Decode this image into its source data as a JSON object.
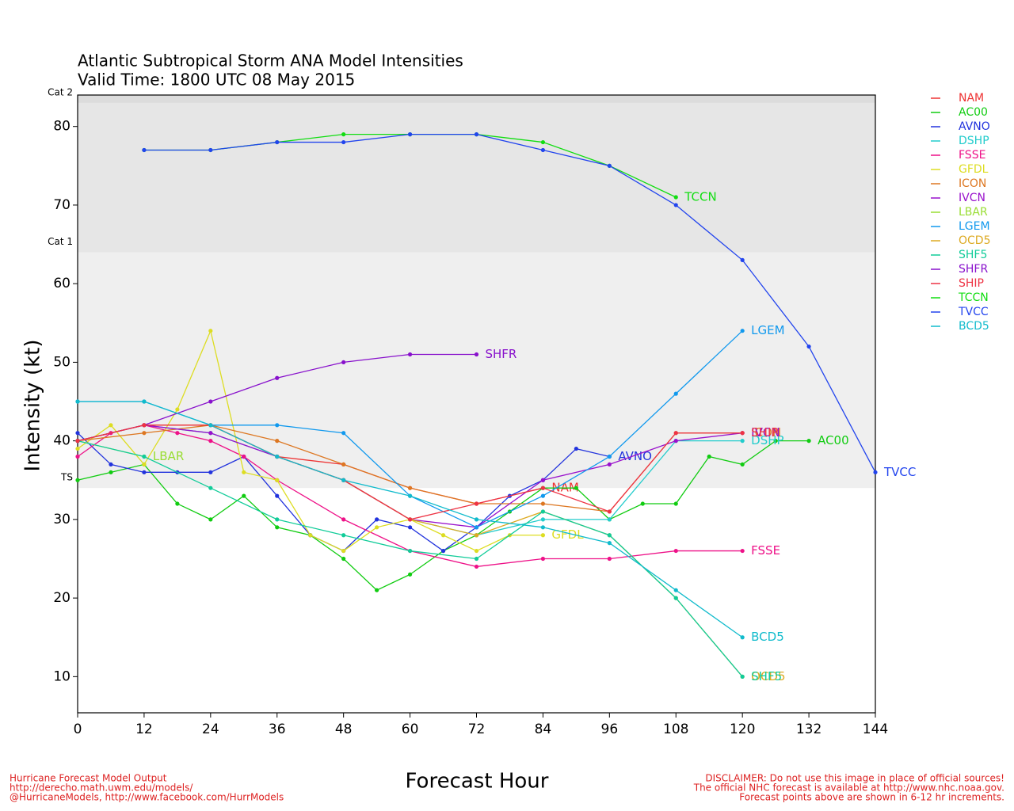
{
  "chart_data": {
    "type": "line",
    "title": "Atlantic Subtropical Storm ANA Model Intensities",
    "subtitle": "Valid Time: 1800 UTC 08 May 2015",
    "x_label": "Forecast Hour",
    "y_label": "Intensity (kt)",
    "xlim": [
      0,
      144
    ],
    "xticks": [
      0,
      12,
      24,
      36,
      48,
      60,
      72,
      84,
      96,
      108,
      120,
      132,
      144
    ],
    "ylim": [
      5.4,
      84
    ],
    "yticks": [
      10,
      20,
      30,
      40,
      50,
      60,
      70,
      80
    ],
    "thresholds": [
      {
        "label": "TS",
        "value": 34
      },
      {
        "label": "Cat 1",
        "value": 64
      },
      {
        "label": "Cat 2",
        "value": 83
      }
    ],
    "series": [
      {
        "name": "NAM",
        "color": "#ee3333",
        "x": [
          0,
          12,
          24,
          36,
          48,
          60,
          72,
          84
        ],
        "values": [
          40,
          42,
          42,
          38,
          37,
          34,
          32,
          34
        ]
      },
      {
        "name": "AC00",
        "color": "#11cc11",
        "x": [
          0,
          6,
          12,
          18,
          24,
          30,
          36,
          42,
          48,
          54,
          60,
          66,
          72,
          78,
          84,
          90,
          96,
          102,
          108,
          114,
          120,
          126,
          132
        ],
        "values": [
          35,
          36,
          37,
          32,
          30,
          33,
          29,
          28,
          25,
          21,
          23,
          26,
          28,
          31,
          34,
          34,
          30,
          32,
          32,
          38,
          37,
          40,
          40
        ]
      },
      {
        "name": "AVNO",
        "color": "#2233dd",
        "x": [
          0,
          6,
          12,
          18,
          24,
          30,
          36,
          42,
          48,
          54,
          60,
          66,
          72,
          78,
          84,
          90,
          96
        ],
        "values": [
          41,
          37,
          36,
          36,
          36,
          38,
          33,
          28,
          26,
          30,
          29,
          26,
          29,
          33,
          35,
          39,
          38
        ]
      },
      {
        "name": "DSHP",
        "color": "#22cccc",
        "x": [
          0,
          12,
          24,
          36,
          48,
          60,
          72,
          84,
          96,
          108,
          120
        ],
        "values": [
          40,
          42,
          41,
          38,
          35,
          30,
          28,
          30,
          30,
          40,
          40
        ]
      },
      {
        "name": "FSSE",
        "color": "#ee1188",
        "x": [
          0,
          6,
          12,
          18,
          24,
          30,
          36,
          48,
          60,
          72,
          84,
          96,
          108,
          120
        ],
        "values": [
          38,
          41,
          42,
          41,
          40,
          38,
          35,
          30,
          26,
          24,
          25,
          25,
          26,
          26
        ]
      },
      {
        "name": "GFDL",
        "color": "#dddd22",
        "x": [
          0,
          6,
          12,
          18,
          24,
          30,
          36,
          42,
          48,
          54,
          60,
          66,
          72,
          78,
          84
        ],
        "values": [
          39,
          42,
          37,
          44,
          54,
          36,
          35,
          28,
          26,
          29,
          30,
          28,
          26,
          28,
          28
        ]
      },
      {
        "name": "ICON",
        "color": "#dd7722",
        "x": [
          0,
          12,
          24,
          36,
          48,
          60,
          72,
          84,
          96,
          108,
          120
        ],
        "values": [
          40,
          41,
          42,
          40,
          37,
          34,
          32,
          32,
          31,
          41,
          41
        ]
      },
      {
        "name": "IVCN",
        "color": "#9911cc",
        "x": [
          0,
          12,
          24,
          36,
          48,
          60,
          72,
          84,
          96,
          108,
          120
        ],
        "values": [
          40,
          42,
          41,
          38,
          35,
          30,
          29,
          35,
          37,
          40,
          41
        ]
      },
      {
        "name": "LBAR",
        "color": "#99dd33",
        "x": [
          0,
          12
        ],
        "values": [
          40,
          38
        ]
      },
      {
        "name": "LGEM",
        "color": "#1199ee",
        "x": [
          0,
          12,
          24,
          36,
          48,
          60,
          72,
          84,
          96,
          108,
          120
        ],
        "values": [
          45,
          45,
          42,
          42,
          41,
          33,
          29,
          33,
          38,
          46,
          54
        ]
      },
      {
        "name": "OCD5",
        "color": "#ddaa22",
        "x": [
          0,
          12,
          24,
          36,
          48,
          60,
          72,
          84,
          96,
          108,
          120
        ],
        "values": [
          40,
          42,
          42,
          38,
          35,
          30,
          28,
          31,
          28,
          20,
          10
        ]
      },
      {
        "name": "SHF5",
        "color": "#11cc99",
        "x": [
          0,
          12,
          24,
          36,
          48,
          60,
          72,
          84,
          96,
          108,
          120
        ],
        "values": [
          40,
          38,
          34,
          30,
          28,
          26,
          25,
          31,
          28,
          20,
          10
        ]
      },
      {
        "name": "SHFR",
        "color": "#8811cc",
        "x": [
          0,
          12,
          24,
          36,
          48,
          60,
          72
        ],
        "values": [
          40,
          42,
          45,
          48,
          50,
          51,
          51
        ]
      },
      {
        "name": "SHIP",
        "color": "#ee3344",
        "x": [
          0,
          12,
          24,
          36,
          48,
          60,
          72,
          84,
          96,
          108,
          120
        ],
        "values": [
          40,
          42,
          42,
          38,
          35,
          30,
          32,
          34,
          31,
          41,
          41
        ]
      },
      {
        "name": "TCCN",
        "color": "#11dd11",
        "x": [
          12,
          24,
          36,
          48,
          60,
          72,
          84,
          96,
          108
        ],
        "values": [
          77,
          77,
          78,
          79,
          79,
          79,
          78,
          75,
          71
        ]
      },
      {
        "name": "TVCC",
        "color": "#2244ee",
        "x": [
          12,
          24,
          36,
          48,
          60,
          72,
          84,
          96,
          108,
          120,
          132,
          144
        ],
        "values": [
          77,
          77,
          78,
          78,
          79,
          79,
          77,
          75,
          70,
          63,
          52,
          36
        ]
      },
      {
        "name": "BCD5",
        "color": "#11bbcc",
        "x": [
          0,
          12,
          24,
          36,
          48,
          60,
          72,
          84,
          96,
          108,
          120
        ],
        "values": [
          45,
          45,
          42,
          38,
          35,
          33,
          30,
          29,
          27,
          21,
          15
        ]
      }
    ],
    "notes_left": [
      "Hurricane Forecast Model Output",
      "http://derecho.math.uwm.edu/models/",
      "@HurricaneModels, http://www.facebook.com/HurrModels"
    ],
    "notes_right": [
      "DISCLAIMER: Do not use this image in place of official sources!",
      "The official NHC forecast is available at http://www.nhc.noaa.gov.",
      "Forecast points above are shown in 6-12 hr increments."
    ]
  }
}
